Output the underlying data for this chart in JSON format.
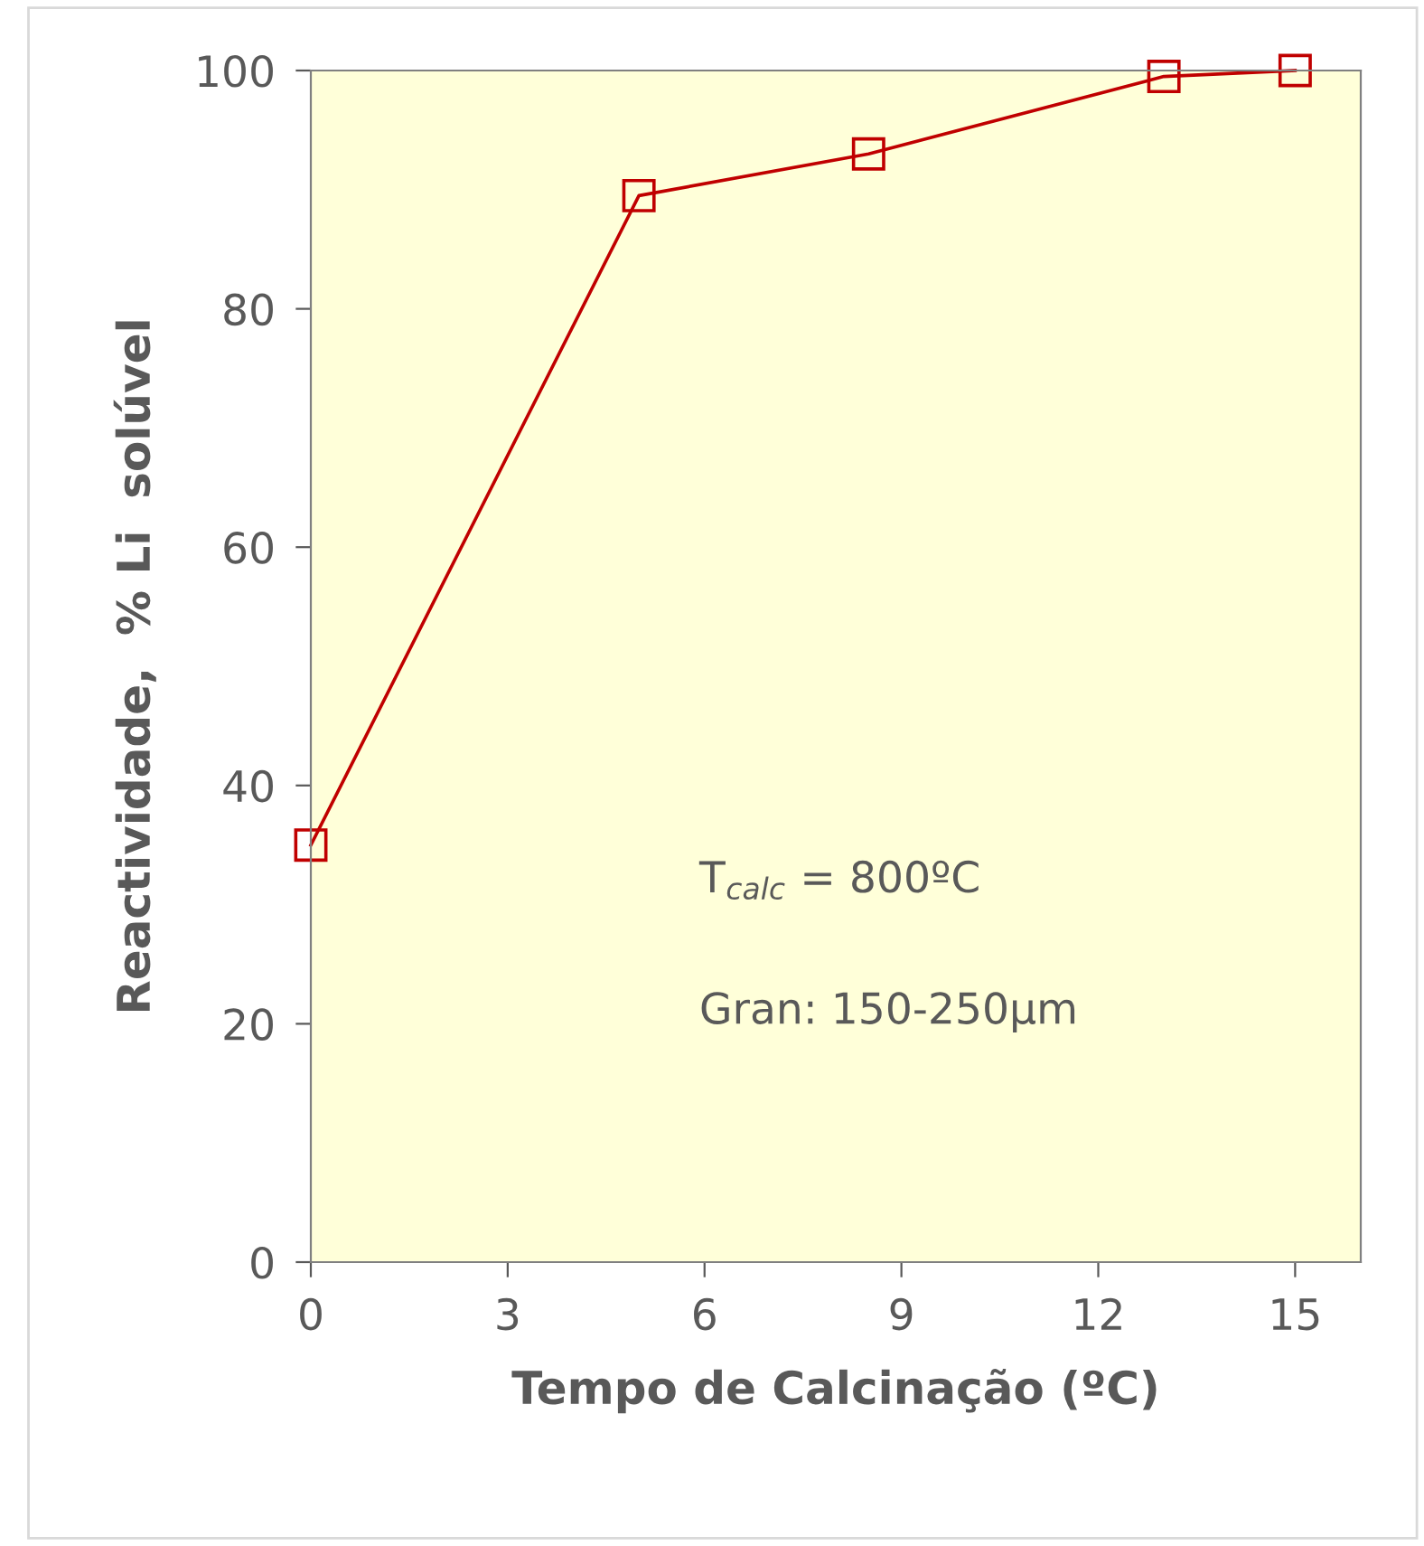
{
  "chart_data": {
    "type": "line",
    "xlabel": "Tempo de Calcinação (ºC)",
    "ylabel": "Reactividade,  % Li  solúvel",
    "x": [
      0,
      5,
      8.5,
      13,
      15
    ],
    "series": [
      {
        "color": "#c00000",
        "values": [
          35,
          89.5,
          93,
          99.5,
          100
        ]
      }
    ],
    "xlim": [
      0,
      16
    ],
    "xticks": [
      0,
      3,
      6,
      9,
      12,
      15
    ],
    "ylim": [
      0,
      100
    ],
    "yticks": [
      0,
      20,
      40,
      60,
      80,
      100
    ],
    "marker": "square",
    "line_style": "solid",
    "grid": false,
    "legend": false,
    "annotations": [
      "T$_{calc}$ = 800ºC",
      "Gran: 150-250µm"
    ]
  }
}
